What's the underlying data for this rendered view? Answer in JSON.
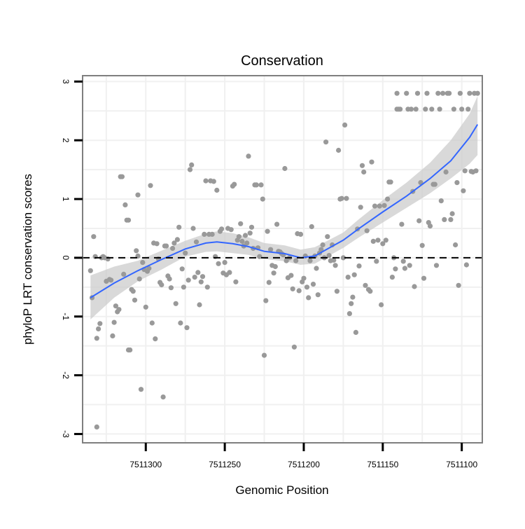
{
  "chart_data": {
    "type": "scatter",
    "title": "Conservation",
    "xlabel": "Genomic Position",
    "ylabel": "phyloP LRT conservation scores",
    "x_reversed": true,
    "xlim": [
      7511340,
      7511087
    ],
    "ylim": [
      -3.15,
      3.1
    ],
    "x_ticks": [
      7511300,
      7511250,
      7511200,
      7511150,
      7511100
    ],
    "x_tick_labels": [
      "7511300",
      "7511250",
      "7511200",
      "7511150",
      "7511100"
    ],
    "y_ticks": [
      -3,
      -2,
      -1,
      0,
      1,
      2,
      3
    ],
    "y_tick_labels": [
      "-3",
      "-2",
      "-1",
      "0",
      "1",
      "2",
      "3"
    ],
    "grid": true,
    "reference_line": {
      "y": 0,
      "style": "dashed"
    },
    "colors": {
      "points": "#999999",
      "smooth_line": "#3366ff",
      "ribbon": "#cccccc",
      "reference_line": "#000000",
      "panel_border": "#7f7f7f",
      "gridline": "#f0f0f0"
    },
    "series": [
      {
        "points": [
          [
            7511335,
            -0.22
          ],
          [
            7511334,
            -0.68
          ],
          [
            7511333,
            0.36
          ],
          [
            7511332,
            0.02
          ],
          [
            7511331,
            -1.37
          ],
          [
            7511331,
            -2.88
          ],
          [
            7511330,
            -1.21
          ],
          [
            7511329,
            -1.12
          ],
          [
            7511328,
            0.0
          ],
          [
            7511327,
            0.02
          ],
          [
            7511326,
            0.0
          ],
          [
            7511325,
            -0.4
          ],
          [
            7511324,
            -0.02
          ],
          [
            7511323,
            -0.37
          ],
          [
            7511322,
            -0.38
          ],
          [
            7511321,
            -1.33
          ],
          [
            7511320,
            -1.1
          ],
          [
            7511319,
            -0.82
          ],
          [
            7511318,
            -0.92
          ],
          [
            7511317,
            -0.88
          ],
          [
            7511316,
            1.38
          ],
          [
            7511315,
            1.38
          ],
          [
            7511314,
            -0.28
          ],
          [
            7511313,
            0.9
          ],
          [
            7511312,
            0.64
          ],
          [
            7511311,
            0.64
          ],
          [
            7511311,
            -1.57
          ],
          [
            7511310,
            -1.57
          ],
          [
            7511309,
            -0.54
          ],
          [
            7511308,
            -0.57
          ],
          [
            7511307,
            -0.72
          ],
          [
            7511306,
            0.12
          ],
          [
            7511305,
            1.07
          ],
          [
            7511305,
            0.03
          ],
          [
            7511304,
            -0.36
          ],
          [
            7511303,
            -2.24
          ],
          [
            7511302,
            -0.08
          ],
          [
            7511301,
            -0.2
          ],
          [
            7511300,
            -0.84
          ],
          [
            7511299,
            -0.23
          ],
          [
            7511298,
            -0.18
          ],
          [
            7511297,
            1.23
          ],
          [
            7511296,
            -1.11
          ],
          [
            7511295,
            0.25
          ],
          [
            7511294,
            -1.38
          ],
          [
            7511293,
            0.24
          ],
          [
            7511292,
            -0.02
          ],
          [
            7511291,
            -0.42
          ],
          [
            7511290,
            -0.46
          ],
          [
            7511289,
            -2.37
          ],
          [
            7511288,
            0.2
          ],
          [
            7511287,
            0.2
          ],
          [
            7511286,
            -0.31
          ],
          [
            7511285,
            -0.36
          ],
          [
            7511284,
            -0.51
          ],
          [
            7511283,
            0.16
          ],
          [
            7511282,
            0.25
          ],
          [
            7511281,
            -0.78
          ],
          [
            7511280,
            0.31
          ],
          [
            7511279,
            0.52
          ],
          [
            7511278,
            -1.11
          ],
          [
            7511277,
            -0.19
          ],
          [
            7511276,
            -0.5
          ],
          [
            7511275,
            0.08
          ],
          [
            7511274,
            -1.19
          ],
          [
            7511273,
            -0.38
          ],
          [
            7511272,
            1.5
          ],
          [
            7511271,
            1.58
          ],
          [
            7511270,
            0.5
          ],
          [
            7511269,
            -0.33
          ],
          [
            7511268,
            0.27
          ],
          [
            7511267,
            -0.25
          ],
          [
            7511266,
            -0.8
          ],
          [
            7511265,
            -0.41
          ],
          [
            7511264,
            -0.32
          ],
          [
            7511263,
            0.4
          ],
          [
            7511262,
            1.31
          ],
          [
            7511261,
            -0.5
          ],
          [
            7511260,
            0.4
          ],
          [
            7511259,
            1.31
          ],
          [
            7511258,
            0.4
          ],
          [
            7511257,
            1.3
          ],
          [
            7511256,
            0.02
          ],
          [
            7511255,
            1.15
          ],
          [
            7511254,
            -0.1
          ],
          [
            7511253,
            0.45
          ],
          [
            7511252,
            0.49
          ],
          [
            7511251,
            -0.26
          ],
          [
            7511250,
            -0.08
          ],
          [
            7511249,
            -0.29
          ],
          [
            7511248,
            0.5
          ],
          [
            7511247,
            -0.25
          ],
          [
            7511246,
            0.48
          ],
          [
            7511245,
            1.22
          ],
          [
            7511244,
            1.25
          ],
          [
            7511243,
            -0.41
          ],
          [
            7511242,
            0.3
          ],
          [
            7511241,
            0.36
          ],
          [
            7511240,
            0.58
          ],
          [
            7511239,
            0.28
          ],
          [
            7511238,
            0.2
          ],
          [
            7511237,
            0.38
          ],
          [
            7511236,
            0.25
          ],
          [
            7511235,
            1.73
          ],
          [
            7511234,
            0.42
          ],
          [
            7511233,
            0.52
          ],
          [
            7511232,
            0.16
          ],
          [
            7511231,
            1.24
          ],
          [
            7511230,
            1.24
          ],
          [
            7511229,
            0.17
          ],
          [
            7511228,
            0.02
          ],
          [
            7511227,
            1.24
          ],
          [
            7511226,
            1.0
          ],
          [
            7511225,
            -1.66
          ],
          [
            7511224,
            -0.73
          ],
          [
            7511223,
            0.45
          ],
          [
            7511222,
            -0.42
          ],
          [
            7511221,
            0.14
          ],
          [
            7511220,
            -0.13
          ],
          [
            7511219,
            -0.26
          ],
          [
            7511218,
            -0.15
          ],
          [
            7511217,
            0.57
          ],
          [
            7511216,
            0.11
          ],
          [
            7511215,
            0.1
          ],
          [
            7511214,
            0.07
          ],
          [
            7511213,
            0.05
          ],
          [
            7511212,
            1.52
          ],
          [
            7511211,
            -0.05
          ],
          [
            7511210,
            -0.34
          ],
          [
            7511209,
            0.0
          ],
          [
            7511208,
            -0.3
          ],
          [
            7511207,
            -0.53
          ],
          [
            7511206,
            -1.52
          ],
          [
            7511205,
            -0.05
          ],
          [
            7511204,
            0.41
          ],
          [
            7511203,
            -0.56
          ],
          [
            7511202,
            0.4
          ],
          [
            7511201,
            -0.41
          ],
          [
            7511200,
            -0.35
          ],
          [
            7511199,
            0.03
          ],
          [
            7511198,
            -0.5
          ],
          [
            7511197,
            -0.68
          ],
          [
            7511196,
            -0.05
          ],
          [
            7511195,
            0.53
          ],
          [
            7511194,
            -0.45
          ],
          [
            7511193,
            0.03
          ],
          [
            7511192,
            -0.18
          ],
          [
            7511191,
            -0.63
          ],
          [
            7511190,
            0.08
          ],
          [
            7511189,
            0.14
          ],
          [
            7511188,
            0.22
          ],
          [
            7511187,
            0.0
          ],
          [
            7511186,
            1.97
          ],
          [
            7511185,
            0.36
          ],
          [
            7511184,
            0.04
          ],
          [
            7511183,
            -0.05
          ],
          [
            7511182,
            0.22
          ],
          [
            7511181,
            -0.04
          ],
          [
            7511180,
            -0.13
          ],
          [
            7511179,
            -0.57
          ],
          [
            7511178,
            1.83
          ],
          [
            7511177,
            1.0
          ],
          [
            7511176,
            1.01
          ],
          [
            7511175,
            0.0
          ],
          [
            7511174,
            2.26
          ],
          [
            7511173,
            1.01
          ],
          [
            7511172,
            -0.33
          ],
          [
            7511171,
            -0.95
          ],
          [
            7511170,
            -0.78
          ],
          [
            7511169,
            -0.67
          ],
          [
            7511168,
            -0.29
          ],
          [
            7511167,
            -1.27
          ],
          [
            7511166,
            0.49
          ],
          [
            7511165,
            -0.14
          ],
          [
            7511164,
            0.86
          ],
          [
            7511163,
            1.57
          ],
          [
            7511162,
            1.46
          ],
          [
            7511161,
            -0.47
          ],
          [
            7511160,
            0.46
          ],
          [
            7511159,
            -0.54
          ],
          [
            7511158,
            -0.57
          ],
          [
            7511157,
            1.63
          ],
          [
            7511156,
            0.28
          ],
          [
            7511155,
            0.88
          ],
          [
            7511154,
            -0.06
          ],
          [
            7511153,
            0.3
          ],
          [
            7511152,
            0.88
          ],
          [
            7511151,
            -0.8
          ],
          [
            7511150,
            0.24
          ],
          [
            7511149,
            0.89
          ],
          [
            7511148,
            0.3
          ],
          [
            7511147,
            1.0
          ],
          [
            7511146,
            1.29
          ],
          [
            7511145,
            1.29
          ],
          [
            7511144,
            -0.33
          ],
          [
            7511143,
            0.0
          ],
          [
            7511142,
            -0.19
          ],
          [
            7511141,
            2.8
          ],
          [
            7511141,
            2.53
          ],
          [
            7511140,
            2.53
          ],
          [
            7511139,
            2.53
          ],
          [
            7511138,
            0.57
          ],
          [
            7511137,
            -0.06
          ],
          [
            7511136,
            -0.18
          ],
          [
            7511135,
            2.8
          ],
          [
            7511134,
            2.53
          ],
          [
            7511133,
            -0.13
          ],
          [
            7511132,
            2.53
          ],
          [
            7511131,
            1.13
          ],
          [
            7511130,
            -0.49
          ],
          [
            7511129,
            2.53
          ],
          [
            7511128,
            2.8
          ],
          [
            7511127,
            0.63
          ],
          [
            7511126,
            1.28
          ],
          [
            7511125,
            0.21
          ],
          [
            7511124,
            -0.35
          ],
          [
            7511123,
            2.53
          ],
          [
            7511122,
            2.8
          ],
          [
            7511121,
            0.6
          ],
          [
            7511120,
            0.54
          ],
          [
            7511119,
            2.53
          ],
          [
            7511118,
            1.25
          ],
          [
            7511117,
            1.25
          ],
          [
            7511116,
            -0.13
          ],
          [
            7511115,
            2.8
          ],
          [
            7511114,
            2.53
          ],
          [
            7511113,
            0.97
          ],
          [
            7511112,
            2.8
          ],
          [
            7511111,
            0.65
          ],
          [
            7511110,
            1.46
          ],
          [
            7511109,
            2.8
          ],
          [
            7511108,
            2.8
          ],
          [
            7511107,
            0.65
          ],
          [
            7511106,
            0.75
          ],
          [
            7511105,
            2.53
          ],
          [
            7511104,
            0.22
          ],
          [
            7511103,
            1.28
          ],
          [
            7511102,
            -0.47
          ],
          [
            7511101,
            2.8
          ],
          [
            7511100,
            2.53
          ],
          [
            7511099,
            1.14
          ],
          [
            7511098,
            1.48
          ],
          [
            7511097,
            -0.12
          ],
          [
            7511096,
            2.53
          ],
          [
            7511095,
            2.8
          ],
          [
            7511094,
            1.47
          ],
          [
            7511093,
            1.46
          ],
          [
            7511092,
            2.8
          ],
          [
            7511091,
            1.48
          ],
          [
            7511090,
            2.8
          ]
        ]
      }
    ],
    "smooth": {
      "x": [
        7511335,
        7511320,
        7511305,
        7511290,
        7511275,
        7511262,
        7511255,
        7511245,
        7511235,
        7511225,
        7511212,
        7511202,
        7511193,
        7511185,
        7511175,
        7511165,
        7511150,
        7511135,
        7511120,
        7511107,
        7511095,
        7511090
      ],
      "y": [
        -0.68,
        -0.43,
        -0.22,
        -0.03,
        0.15,
        0.25,
        0.27,
        0.24,
        0.19,
        0.11,
        0.07,
        0.0,
        0.03,
        0.15,
        0.3,
        0.5,
        0.78,
        1.05,
        1.35,
        1.65,
        2.05,
        2.27
      ],
      "lower": [
        -1.05,
        -0.68,
        -0.4,
        -0.2,
        0.02,
        0.1,
        0.11,
        0.08,
        0.05,
        -0.02,
        -0.06,
        -0.12,
        -0.1,
        0.02,
        0.17,
        0.35,
        0.6,
        0.85,
        1.1,
        1.35,
        1.6,
        1.75
      ],
      "upper": [
        -0.3,
        -0.15,
        -0.05,
        0.12,
        0.29,
        0.41,
        0.45,
        0.42,
        0.35,
        0.25,
        0.21,
        0.14,
        0.18,
        0.29,
        0.43,
        0.66,
        0.98,
        1.28,
        1.62,
        2.0,
        2.45,
        2.75
      ]
    }
  }
}
